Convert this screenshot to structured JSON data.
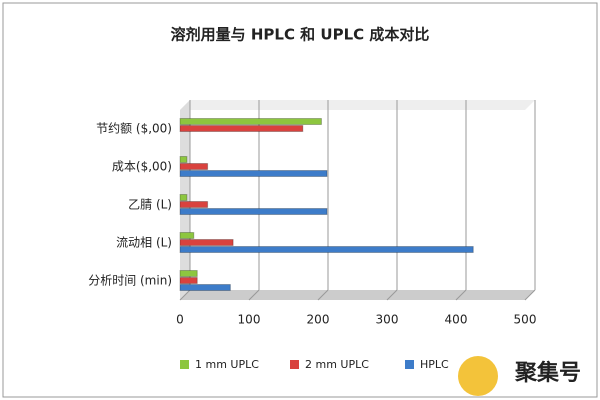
{
  "chart_data": {
    "type": "hbar",
    "title": "溶剂用量与 HPLC 和 UPLC 成本对比",
    "categories": [
      "节约额 ($,00)",
      "成本($,00)",
      "乙腈 (L)",
      "流动相 (L)",
      "分析时间 (min)"
    ],
    "series": [
      {
        "name": "1 mm UPLC",
        "color": "#8dc63f",
        "values": [
          205,
          10,
          10,
          20,
          25
        ]
      },
      {
        "name": "2 mm UPLC",
        "color": "#d9423e",
        "values": [
          178,
          40,
          40,
          77,
          25
        ]
      },
      {
        "name": "HPLC",
        "color": "#3d7cc9",
        "values": [
          0,
          213,
          213,
          425,
          73
        ]
      }
    ],
    "xlim": [
      0,
      500
    ],
    "xticks": [
      0,
      100,
      200,
      300,
      400,
      500
    ],
    "grid": true,
    "legend": "bottom",
    "watermark": "聚集号"
  }
}
